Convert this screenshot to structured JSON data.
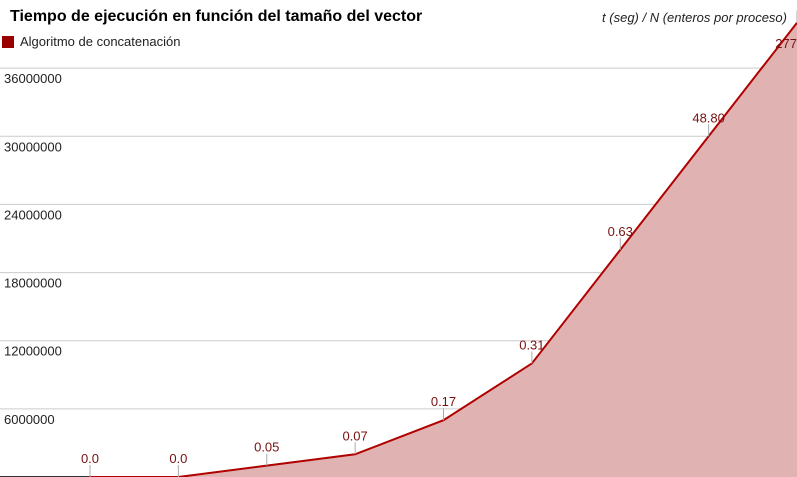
{
  "chart_data": {
    "type": "area",
    "title": "Tiempo de ejecución en función del tamaño del vector",
    "axis_note": "t (seg) / N (enteros por proceso)",
    "legend_position": "top-left",
    "grid": true,
    "ylim": [
      0,
      42000000
    ],
    "y_ticks": [
      "36000000",
      "30000000",
      "24000000",
      "18000000",
      "12000000",
      "6000000"
    ],
    "y_tick_values": [
      36000000,
      30000000,
      24000000,
      18000000,
      12000000,
      6000000
    ],
    "colors": {
      "line": "#b00000",
      "fill": "#e0b2b2",
      "legend": "#990000",
      "grid": "#cccccc"
    },
    "series": [
      {
        "name": "Algoritmo de concatenación",
        "values": [
          0,
          0,
          1000000,
          2000000,
          5000000,
          10000000,
          20000000,
          30000000,
          40000000
        ],
        "labels": [
          "0.0",
          "0.0",
          "0.05",
          "0.07",
          "0.17",
          "0.31",
          "0.63",
          "48.80",
          "277"
        ]
      }
    ]
  }
}
